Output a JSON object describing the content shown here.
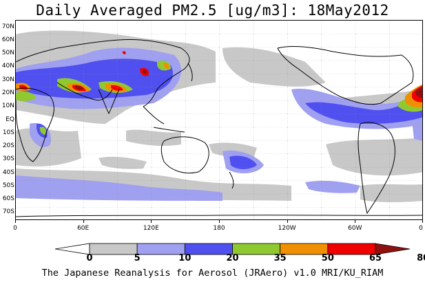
{
  "title": "Daily Averaged PM2.5 [ug/m3]: 18May2012",
  "footer": "The Japanese Reanalysis for Aerosol (JRAero) v1.0 MRI/KU_RIAM",
  "lat_labels": [
    "70N",
    "60N",
    "50N",
    "40N",
    "30N",
    "20N",
    "10N",
    "EQ",
    "10S",
    "20S",
    "30S",
    "40S",
    "50S",
    "60S",
    "70S"
  ],
  "lon_labels": [
    "0",
    "60E",
    "120E",
    "180",
    "120W",
    "60W",
    "0"
  ],
  "colorbar": {
    "levels": [
      "0",
      "5",
      "10",
      "20",
      "35",
      "50",
      "65",
      "80"
    ],
    "colors": [
      "#ffffff",
      "#c8c8c8",
      "#a0a0f0",
      "#5050f0",
      "#90c830",
      "#f09000",
      "#f00000",
      "#901010"
    ]
  }
}
